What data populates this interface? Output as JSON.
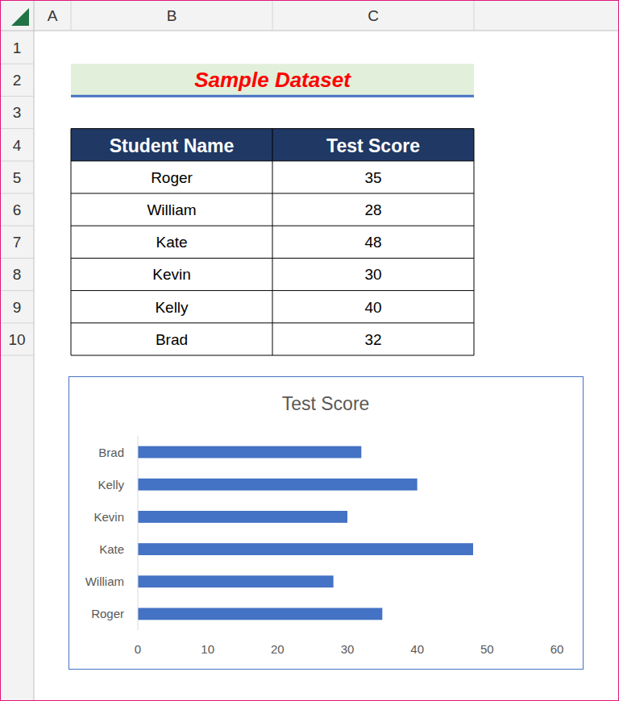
{
  "sheet": {
    "columns": [
      "A",
      "B",
      "C"
    ],
    "rows": [
      1,
      2,
      3,
      4,
      5,
      6,
      7,
      8,
      9,
      10
    ],
    "title": "Sample Dataset",
    "table": {
      "header": [
        "Student Name",
        "Test Score"
      ],
      "rows": [
        [
          "Roger",
          35
        ],
        [
          "William",
          28
        ],
        [
          "Kate",
          48
        ],
        [
          "Kevin",
          30
        ],
        [
          "Kelly",
          40
        ],
        [
          "Brad",
          32
        ]
      ]
    }
  },
  "chart_data": {
    "type": "bar",
    "orientation": "horizontal",
    "title": "Test Score",
    "categories": [
      "Roger",
      "William",
      "Kate",
      "Kevin",
      "Kelly",
      "Brad"
    ],
    "values": [
      35,
      28,
      48,
      30,
      40,
      32
    ],
    "color": "#4472c4",
    "xlim": [
      0,
      60
    ],
    "xticks": [
      0,
      10,
      20,
      30,
      40,
      50,
      60
    ],
    "grid": false
  }
}
